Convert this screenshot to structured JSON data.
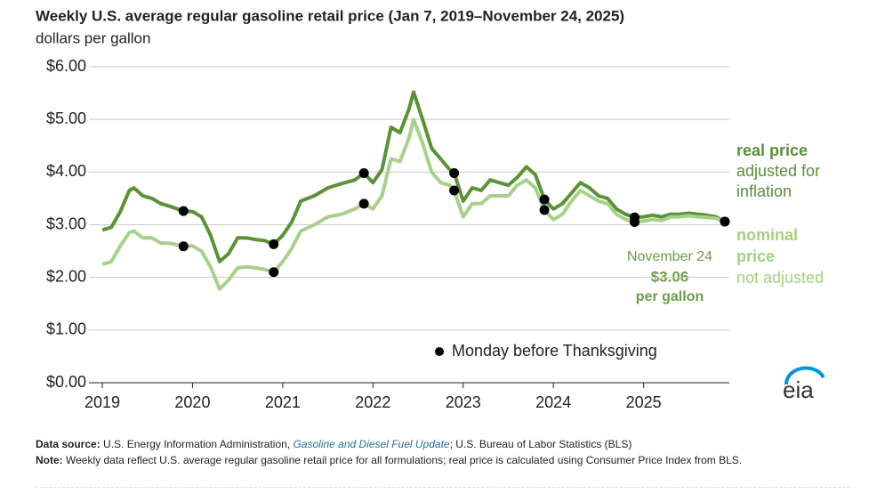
{
  "chart_data": {
    "type": "line",
    "title": "Weekly U.S. average regular gasoline retail price (Jan 7, 2019–November 24, 2025)",
    "subtitle": "dollars per gallon",
    "x": [
      2019.0,
      2019.1,
      2019.2,
      2019.3,
      2019.35,
      2019.45,
      2019.55,
      2019.65,
      2019.75,
      2019.9,
      2020.0,
      2020.1,
      2020.2,
      2020.3,
      2020.4,
      2020.5,
      2020.6,
      2020.7,
      2020.8,
      2020.9,
      2021.0,
      2021.1,
      2021.2,
      2021.35,
      2021.5,
      2021.65,
      2021.8,
      2021.9,
      2022.0,
      2022.1,
      2022.2,
      2022.3,
      2022.4,
      2022.45,
      2022.55,
      2022.65,
      2022.75,
      2022.85,
      2022.9,
      2023.0,
      2023.1,
      2023.2,
      2023.3,
      2023.4,
      2023.5,
      2023.6,
      2023.7,
      2023.8,
      2023.9,
      2024.0,
      2024.1,
      2024.2,
      2024.3,
      2024.4,
      2024.5,
      2024.6,
      2024.7,
      2024.8,
      2024.9,
      2025.0,
      2025.1,
      2025.2,
      2025.3,
      2025.4,
      2025.5,
      2025.6,
      2025.7,
      2025.8,
      2025.9
    ],
    "series": [
      {
        "name": "real price",
        "color": "#5b9137",
        "values": [
          2.9,
          2.95,
          3.25,
          3.65,
          3.7,
          3.55,
          3.5,
          3.4,
          3.35,
          3.26,
          3.25,
          3.15,
          2.8,
          2.3,
          2.45,
          2.75,
          2.75,
          2.72,
          2.7,
          2.63,
          2.8,
          3.05,
          3.45,
          3.55,
          3.7,
          3.78,
          3.85,
          3.98,
          3.8,
          4.05,
          4.85,
          4.75,
          5.2,
          5.52,
          5.0,
          4.45,
          4.25,
          4.05,
          3.98,
          3.45,
          3.7,
          3.65,
          3.85,
          3.8,
          3.75,
          3.9,
          4.1,
          3.95,
          3.48,
          3.3,
          3.4,
          3.6,
          3.8,
          3.7,
          3.55,
          3.5,
          3.3,
          3.2,
          3.14,
          3.15,
          3.18,
          3.15,
          3.2,
          3.2,
          3.22,
          3.2,
          3.18,
          3.15,
          3.06
        ]
      },
      {
        "name": "nominal price",
        "color": "#a8d08d",
        "values": [
          2.25,
          2.3,
          2.6,
          2.85,
          2.88,
          2.75,
          2.75,
          2.65,
          2.65,
          2.59,
          2.6,
          2.5,
          2.2,
          1.78,
          1.95,
          2.18,
          2.2,
          2.18,
          2.15,
          2.1,
          2.3,
          2.55,
          2.88,
          3.0,
          3.15,
          3.2,
          3.3,
          3.4,
          3.3,
          3.55,
          4.25,
          4.2,
          4.65,
          5.0,
          4.55,
          4.0,
          3.8,
          3.75,
          3.65,
          3.15,
          3.4,
          3.4,
          3.55,
          3.55,
          3.55,
          3.75,
          3.85,
          3.7,
          3.28,
          3.1,
          3.2,
          3.45,
          3.65,
          3.55,
          3.45,
          3.4,
          3.2,
          3.1,
          3.05,
          3.07,
          3.1,
          3.08,
          3.15,
          3.15,
          3.17,
          3.15,
          3.14,
          3.12,
          3.06
        ]
      }
    ],
    "highlight": {
      "name": "Monday before Thanksgiving",
      "color": "#000000",
      "x": [
        2019.9,
        2020.9,
        2021.9,
        2022.9,
        2023.9,
        2024.9,
        2025.9
      ]
    },
    "xlim": [
      2019,
      2025.95
    ],
    "xticks": [
      2019,
      2020,
      2021,
      2022,
      2023,
      2024,
      2025
    ],
    "ylim": [
      0,
      6
    ],
    "yticks": [
      {
        "value": 0,
        "label": "$0.00"
      },
      {
        "value": 1,
        "label": "$1.00"
      },
      {
        "value": 2,
        "label": "$2.00"
      },
      {
        "value": 3,
        "label": "$3.00"
      },
      {
        "value": 4,
        "label": "$4.00"
      },
      {
        "value": 5,
        "label": "$5.00"
      },
      {
        "value": 6,
        "label": "$6.00"
      }
    ],
    "grid": true,
    "annotations": {
      "real": {
        "title": "real price",
        "lines": [
          "adjusted for",
          "inflation"
        ]
      },
      "nominal": {
        "title": [
          "nominal",
          "price"
        ],
        "lines": [
          "not adjusted"
        ]
      },
      "latest": {
        "date": "November 24",
        "value": "$3.06",
        "unit": "per gallon"
      }
    },
    "notes": {
      "source_label": "Data source:",
      "source_text": "U.S. Energy Information Administration,",
      "source_link": "Gasoline and Diesel Fuel Update",
      "source_rest": "; U.S. Bureau of Labor Statistics (BLS)",
      "note_label": "Note:",
      "note_text": "Weekly data reflect U.S. average regular gasoline retail price for all formulations; real price is calculated using Consumer Price Index from BLS."
    },
    "logo": "eia"
  }
}
